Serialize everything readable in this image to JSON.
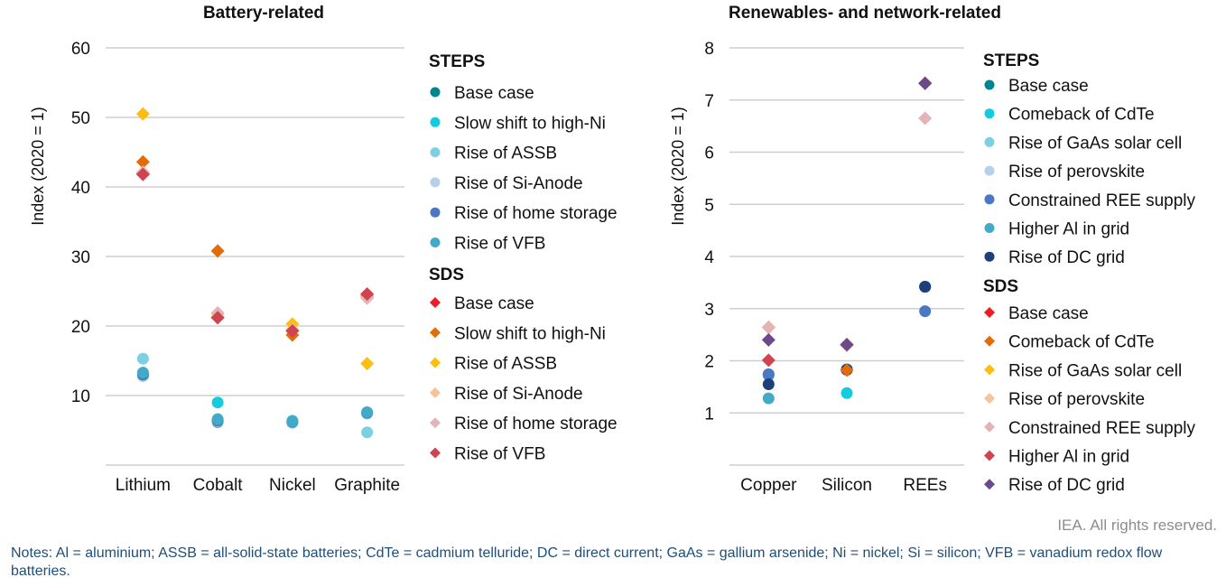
{
  "chart_data": [
    {
      "type": "scatter",
      "title": "Battery-related",
      "ylabel": "Index (2020 = 1)",
      "ylim": [
        0,
        60
      ],
      "yticks": [
        10,
        20,
        30,
        40,
        50,
        60
      ],
      "grid": true,
      "categories": [
        "Lithium",
        "Cobalt",
        "Nickel",
        "Graphite"
      ],
      "legend_placement": "right",
      "legend_groups": [
        {
          "title": "STEPS",
          "marker": "circle",
          "series": [
            {
              "name": "Base case",
              "color": "#00848f",
              "values": [
                12.8,
                6.2,
                6.1,
                7.5
              ]
            },
            {
              "name": "Slow shift to high-Ni",
              "color": "#14cbe0",
              "values": [
                13.0,
                9.0,
                6.3,
                7.5
              ]
            },
            {
              "name": "Rise of ASSB",
              "color": "#7dcfe2",
              "values": [
                15.3,
                6.5,
                6.4,
                4.7
              ]
            },
            {
              "name": "Rise of Si-Anode",
              "color": "#b6d0eb",
              "values": [
                12.8,
                6.3,
                6.1,
                7.4
              ]
            },
            {
              "name": "Rise of home storage",
              "color": "#4a78c2",
              "values": [
                13.0,
                6.4,
                6.2,
                7.5
              ]
            },
            {
              "name": "Rise of VFB",
              "color": "#41aac6",
              "values": [
                13.3,
                6.6,
                6.3,
                7.6
              ]
            }
          ]
        },
        {
          "title": "SDS",
          "marker": "diamond",
          "series": [
            {
              "name": "Base case",
              "color": "#ee1c25",
              "values": [
                41.9,
                21.2,
                19.3,
                24.6
              ]
            },
            {
              "name": "Slow shift to high-Ni",
              "color": "#e36c0a",
              "values": [
                43.6,
                30.8,
                18.7,
                24.3
              ]
            },
            {
              "name": "Rise of ASSB",
              "color": "#fcbf0f",
              "values": [
                50.5,
                21.3,
                20.3,
                14.6
              ]
            },
            {
              "name": "Rise of Si-Anode",
              "color": "#f6c39a",
              "values": [
                42.1,
                21.7,
                19.5,
                24.1
              ]
            },
            {
              "name": "Rise of home storage",
              "color": "#e2b4b6",
              "values": [
                42.1,
                21.9,
                19.4,
                24.0
              ]
            },
            {
              "name": "Rise of VFB",
              "color": "#d0444f",
              "values": [
                41.8,
                21.2,
                19.3,
                24.6
              ]
            }
          ]
        }
      ]
    },
    {
      "type": "scatter",
      "title": "Renewables- and network-related",
      "ylabel": "Index (2020 = 1)",
      "ylim": [
        0,
        8
      ],
      "yticks": [
        1,
        2,
        3,
        4,
        5,
        6,
        7,
        8
      ],
      "grid": true,
      "categories": [
        "Copper",
        "Silicon",
        "REEs"
      ],
      "legend_placement": "right",
      "legend_groups": [
        {
          "title": "STEPS",
          "marker": "circle",
          "series": [
            {
              "name": "Base case",
              "color": "#00848f",
              "values": [
                1.74,
                1.83,
                3.42
              ]
            },
            {
              "name": "Comeback of CdTe",
              "color": "#14cbe0",
              "values": [
                1.72,
                1.38,
                3.42
              ]
            },
            {
              "name": "Rise of GaAs solar cell",
              "color": "#7dcfe2",
              "values": [
                1.74,
                1.84,
                3.42
              ]
            },
            {
              "name": "Rise of perovskite",
              "color": "#b6d0eb",
              "values": [
                1.74,
                1.82,
                3.42
              ]
            },
            {
              "name": "Constrained REE supply",
              "color": "#4a78c2",
              "values": [
                1.74,
                1.83,
                2.95
              ]
            },
            {
              "name": "Higher Al in grid",
              "color": "#41aac6",
              "values": [
                1.28,
                1.83,
                3.42
              ]
            },
            {
              "name": "Rise of DC grid",
              "color": "#1f3f7a",
              "values": [
                1.55,
                1.83,
                3.42
              ]
            }
          ]
        },
        {
          "title": "SDS",
          "marker": "diamond",
          "series": [
            {
              "name": "Base case",
              "color": "#ee1c25",
              "values": [
                2.64,
                2.31,
                7.32
              ]
            },
            {
              "name": "Comeback of CdTe",
              "color": "#e36c0a",
              "values": [
                2.64,
                1.82,
                7.32
              ]
            },
            {
              "name": "Rise of GaAs solar cell",
              "color": "#fcbf0f",
              "values": [
                2.64,
                2.31,
                7.32
              ]
            },
            {
              "name": "Rise of perovskite",
              "color": "#f6c39a",
              "values": [
                2.64,
                2.29,
                7.32
              ]
            },
            {
              "name": "Constrained REE supply",
              "color": "#e2b4b6",
              "values": [
                2.64,
                2.31,
                6.65
              ]
            },
            {
              "name": "Higher Al in grid",
              "color": "#d0444f",
              "values": [
                2.01,
                2.31,
                7.32
              ]
            },
            {
              "name": "Rise of DC grid",
              "color": "#6b4a8a",
              "values": [
                2.4,
                2.31,
                7.32
              ]
            }
          ]
        }
      ]
    }
  ],
  "footer": {
    "credit": "IEA. All rights reserved.",
    "notes": "Notes: Al = aluminium; ASSB = all-solid-state batteries; CdTe = cadmium telluride; DC = direct current; GaAs = gallium arsenide; Ni = nickel; Si = silicon; VFB = vanadium redox flow batteries."
  }
}
